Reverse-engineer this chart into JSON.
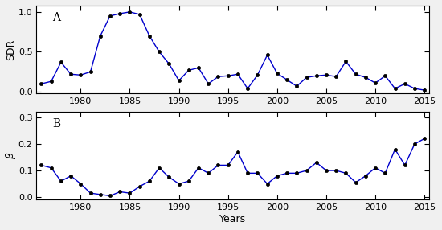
{
  "panel_A": {
    "years": [
      1976,
      1977,
      1978,
      1979,
      1980,
      1981,
      1982,
      1983,
      1984,
      1985,
      1986,
      1987,
      1988,
      1989,
      1990,
      1991,
      1992,
      1993,
      1994,
      1995,
      1996,
      1997,
      1998,
      1999,
      2000,
      2001,
      2002,
      2003,
      2004,
      2005,
      2006,
      2007,
      2008,
      2009,
      2010,
      2011,
      2012,
      2013,
      2014,
      2015
    ],
    "values": [
      0.1,
      0.13,
      0.37,
      0.22,
      0.21,
      0.25,
      0.7,
      0.95,
      0.98,
      1.0,
      0.97,
      0.7,
      0.5,
      0.35,
      0.14,
      0.27,
      0.3,
      0.1,
      0.19,
      0.2,
      0.22,
      0.04,
      0.21,
      0.46,
      0.23,
      0.15,
      0.07,
      0.18,
      0.2,
      0.21,
      0.19,
      0.38,
      0.22,
      0.18,
      0.11,
      0.2,
      0.04,
      0.1,
      0.04,
      0.02
    ],
    "ylabel": "SDR",
    "label": "A",
    "ylim": [
      -0.02,
      1.08
    ],
    "yticks": [
      0,
      0.5,
      1
    ],
    "xlim": [
      1975.5,
      2015.5
    ]
  },
  "panel_B": {
    "years": [
      1976,
      1977,
      1978,
      1979,
      1980,
      1981,
      1982,
      1983,
      1984,
      1985,
      1986,
      1987,
      1988,
      1989,
      1990,
      1991,
      1992,
      1993,
      1994,
      1995,
      1996,
      1997,
      1998,
      1999,
      2000,
      2001,
      2002,
      2003,
      2004,
      2005,
      2006,
      2007,
      2008,
      2009,
      2010,
      2011,
      2012,
      2013,
      2014,
      2015
    ],
    "values": [
      0.12,
      0.11,
      0.06,
      0.08,
      0.05,
      0.015,
      0.01,
      0.005,
      0.02,
      0.015,
      0.04,
      0.06,
      0.11,
      0.075,
      0.05,
      0.06,
      0.11,
      0.09,
      0.12,
      0.12,
      0.17,
      0.09,
      0.09,
      0.05,
      0.08,
      0.09,
      0.09,
      0.1,
      0.13,
      0.1,
      0.1,
      0.09,
      0.055,
      0.08,
      0.11,
      0.09,
      0.18,
      0.12,
      0.2,
      0.22
    ],
    "ylabel": "β",
    "label": "B",
    "ylim": [
      -0.01,
      0.32
    ],
    "yticks": [
      0,
      0.1,
      0.2,
      0.3
    ],
    "xlim": [
      1975.5,
      2015.5
    ]
  },
  "xlabel": "Years",
  "line_color": "#0000CC",
  "marker": "o",
  "markersize": 3.0,
  "linewidth": 1.0,
  "xticks": [
    1980,
    1985,
    1990,
    1995,
    2000,
    2005,
    2010,
    2015
  ],
  "bg_color": "#f0f0f0",
  "plot_bg": "#ffffff"
}
